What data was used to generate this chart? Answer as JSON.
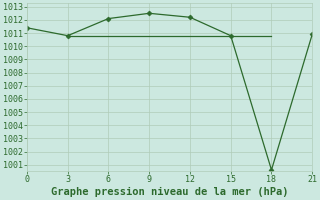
{
  "x": [
    0,
    3,
    6,
    9,
    12,
    15,
    18,
    21
  ],
  "y_line1": [
    1011.4,
    1010.8,
    1012.1,
    1012.5,
    1012.2,
    1010.8,
    1000.6,
    1010.9
  ],
  "y_line2_x": [
    3,
    18
  ],
  "y_line2_y": [
    1010.8,
    1010.8
  ],
  "line_color": "#2d6a2d",
  "bg_color": "#cce8e0",
  "grid_color": "#b0ccb8",
  "xlabel": "Graphe pression niveau de la mer (hPa)",
  "xlim": [
    0,
    21
  ],
  "ylim": [
    1000.5,
    1013.3
  ],
  "xticks": [
    0,
    3,
    6,
    9,
    12,
    15,
    18,
    21
  ],
  "yticks": [
    1001,
    1002,
    1003,
    1004,
    1005,
    1006,
    1007,
    1008,
    1009,
    1010,
    1011,
    1012,
    1013
  ]
}
